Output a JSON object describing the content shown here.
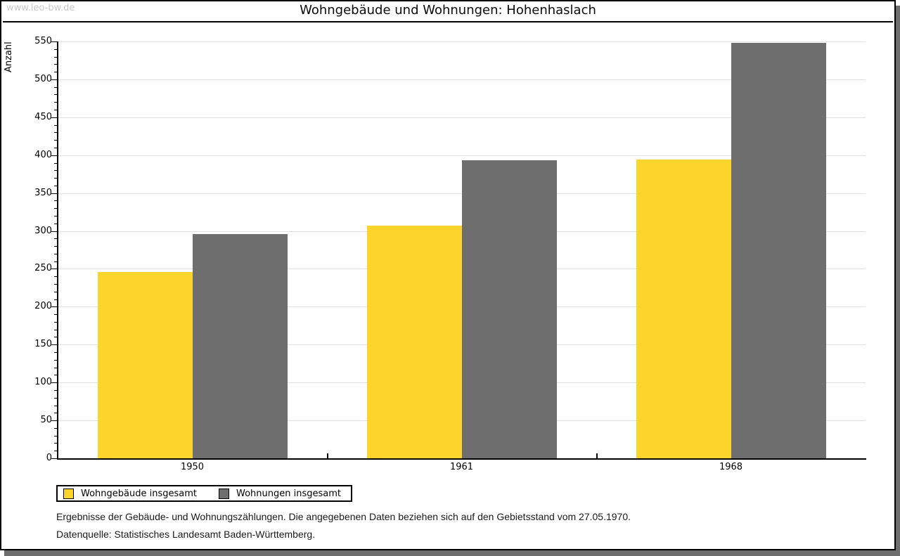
{
  "watermark": "www.leo-bw.de",
  "chart_data": {
    "type": "bar",
    "title": "Wohngebäude und Wohnungen: Hohenhaslach",
    "ylabel": "Anzahl",
    "xlabel": "",
    "categories": [
      "1950",
      "1961",
      "1968"
    ],
    "series": [
      {
        "name": "Wohngebäude insgesamt",
        "color": "#fcd42c",
        "values": [
          246,
          307,
          394
        ]
      },
      {
        "name": "Wohnungen insgesamt",
        "color": "#6e6e6e",
        "values": [
          296,
          393,
          548
        ]
      }
    ],
    "ylim": [
      0,
      550
    ],
    "ytick_step": 50,
    "minor_tick_step": 10,
    "grid": true,
    "legend_position": "bottom-left"
  },
  "footnotes": [
    "Ergebnisse der Gebäude- und Wohnungszählungen. Die angegebenen Daten beziehen sich auf den Gebietsstand vom 27.05.1970.",
    "Datenquelle: Statistisches Landesamt Baden-Württemberg."
  ],
  "colors": {
    "shadow": "#6e6e6e",
    "gridline": "#e0e0e0",
    "watermark_text": "#c9c9c9"
  }
}
